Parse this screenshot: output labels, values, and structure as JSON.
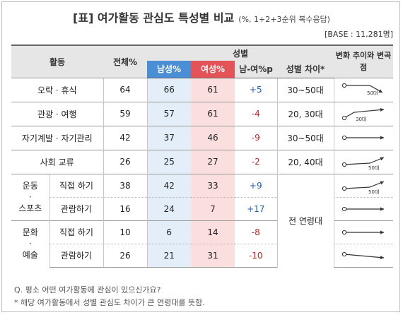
{
  "title": {
    "main": "[표] 여가활동 관심도 특성별 비교",
    "sub": "(%, 1+2+3순위 복수응답)"
  },
  "base": "[BASE : 11,281명]",
  "headers": {
    "activity": "활동",
    "total": "전체%",
    "gender": "성별",
    "male": "남성%",
    "female": "여성%",
    "diff": "남-여%p",
    "gap": "성별 차이*",
    "trend": "변화 추이와 변곡점"
  },
  "rows": [
    {
      "group": "오락 · 휴식",
      "sub": "",
      "total": "64",
      "male": "66",
      "female": "61",
      "diff": "+5",
      "gap": "30~50대",
      "trend": {
        "shape": "down-right",
        "label": "50대"
      }
    },
    {
      "group": "관광 · 여행",
      "sub": "",
      "total": "59",
      "male": "57",
      "female": "61",
      "diff": "-4",
      "gap": "20, 30대",
      "trend": {
        "shape": "up-left",
        "label": "30대"
      }
    },
    {
      "group": "자기계발 · 자기관리",
      "sub": "",
      "total": "42",
      "male": "37",
      "female": "46",
      "diff": "-9",
      "gap": "30~50대",
      "trend": {
        "shape": "flat",
        "label": ""
      }
    },
    {
      "group": "사회 교류",
      "sub": "",
      "total": "26",
      "male": "25",
      "female": "27",
      "diff": "-2",
      "gap": "20, 40대",
      "trend": {
        "shape": "up-right",
        "label": "50대"
      }
    },
    {
      "group": "운동 · 스포츠",
      "sub": "직접 하기",
      "total": "38",
      "male": "42",
      "female": "33",
      "diff": "+9",
      "gap": "전 연령대",
      "trend": {
        "shape": "up-right",
        "label": "50대"
      }
    },
    {
      "group": "",
      "sub": "관람하기",
      "total": "16",
      "male": "24",
      "female": "7",
      "diff": "+17",
      "gap": "",
      "trend": {
        "shape": "flat",
        "label": ""
      }
    },
    {
      "group": "문화 · 예술",
      "sub": "직접 하기",
      "total": "10",
      "male": "6",
      "female": "14",
      "diff": "-8",
      "gap": "",
      "trend": {
        "shape": "flat",
        "label": ""
      }
    },
    {
      "group": "",
      "sub": "관람하기",
      "total": "26",
      "male": "21",
      "female": "31",
      "diff": "-10",
      "gap": "",
      "trend": {
        "shape": "slight-down",
        "label": ""
      }
    }
  ],
  "footnotes": {
    "q": "Q. 평소 어떤 여가활동에 관심이 있으신가요?",
    "note": "* 해당 여가활동에서 성별 관심도 차이가 큰 연령대를 뜻함."
  }
}
